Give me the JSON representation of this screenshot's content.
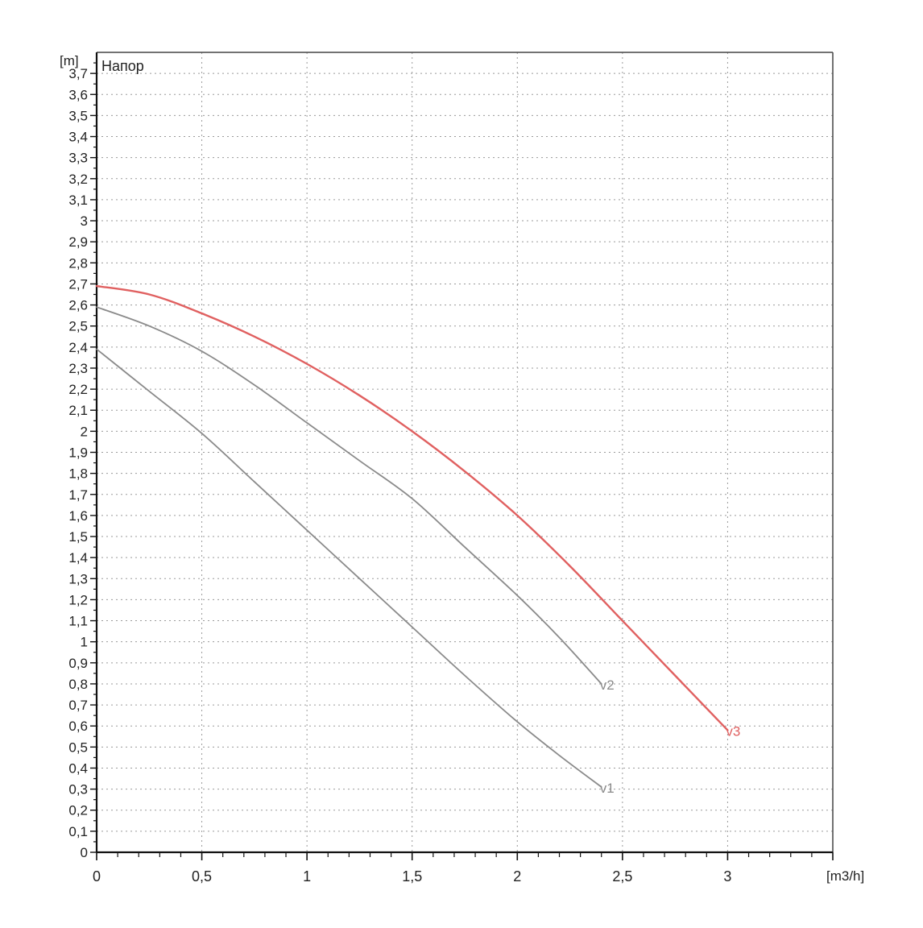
{
  "chart_data": {
    "type": "line",
    "title": "Напор",
    "ylabel": "[m]",
    "xlabel": "[m3/h]",
    "xlim": [
      0,
      3.5
    ],
    "ylim": [
      0,
      3.8
    ],
    "x_ticks": [
      "0",
      "0,5",
      "1",
      "1,5",
      "2",
      "2,5",
      "3"
    ],
    "y_ticks": [
      "0",
      "0,1",
      "0,2",
      "0,3",
      "0,4",
      "0,5",
      "0,6",
      "0,7",
      "0,8",
      "0,9",
      "1",
      "1,1",
      "1,2",
      "1,3",
      "1,4",
      "1,5",
      "1,6",
      "1,7",
      "1,8",
      "1,9",
      "2",
      "2,1",
      "2,2",
      "2,3",
      "2,4",
      "2,5",
      "2,6",
      "2,7",
      "2,8",
      "2,9",
      "3",
      "3,1",
      "3,2",
      "3,3",
      "3,4",
      "3,5",
      "3,6",
      "3,7"
    ],
    "grid": true,
    "series": [
      {
        "name": "v1",
        "color": "#8a8a8a",
        "x": [
          0,
          0.25,
          0.5,
          0.75,
          1.0,
          1.25,
          1.5,
          1.75,
          2.0,
          2.2,
          2.4
        ],
        "y": [
          2.39,
          2.19,
          1.99,
          1.76,
          1.53,
          1.3,
          1.07,
          0.84,
          0.62,
          0.46,
          0.31
        ]
      },
      {
        "name": "v2",
        "color": "#8a8a8a",
        "x": [
          0,
          0.25,
          0.5,
          0.75,
          1.0,
          1.25,
          1.5,
          1.75,
          2.0,
          2.2,
          2.4
        ],
        "y": [
          2.59,
          2.5,
          2.38,
          2.22,
          2.04,
          1.86,
          1.68,
          1.45,
          1.22,
          1.02,
          0.8
        ]
      },
      {
        "name": "v3",
        "color": "#e06060",
        "x": [
          0,
          0.25,
          0.5,
          0.75,
          1.0,
          1.25,
          1.5,
          1.75,
          2.0,
          2.25,
          2.5,
          2.75,
          3.0
        ],
        "y": [
          2.69,
          2.65,
          2.56,
          2.45,
          2.32,
          2.17,
          2.0,
          1.81,
          1.6,
          1.36,
          1.1,
          0.84,
          0.58
        ]
      }
    ]
  }
}
